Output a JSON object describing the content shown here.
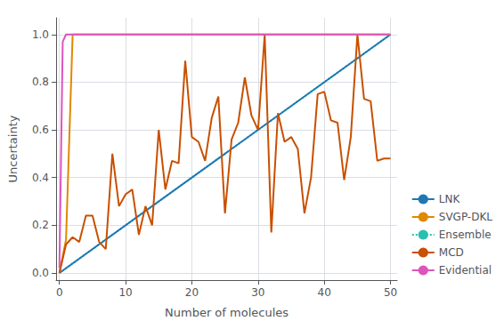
{
  "chart_data": {
    "type": "line",
    "xlabel": "Number of molecules",
    "ylabel": "Uncertainty",
    "xlim": [
      -0.5,
      51
    ],
    "ylim": [
      -0.03,
      1.07
    ],
    "xticks": [
      0,
      10,
      20,
      30,
      40,
      50
    ],
    "yticks": [
      {
        "value": 0.0,
        "label": "0.0"
      },
      0.2,
      0.4,
      0.6,
      0.8,
      {
        "value": 1.0,
        "label": "1.0"
      }
    ],
    "grid": true,
    "legend": "lower right",
    "series": [
      {
        "name": "LNK",
        "color": "#1f77b4",
        "line_style": "solid",
        "x": [
          0,
          50
        ],
        "values": [
          0.0,
          1.0
        ]
      },
      {
        "name": "SVGP-DKL",
        "color": "#e08800",
        "line_style": "solid",
        "x": [
          0,
          1,
          2,
          50
        ],
        "values": [
          0.0,
          0.14,
          1.0,
          1.0
        ]
      },
      {
        "name": "Ensemble",
        "color": "#2abfb0",
        "line_style": "dotted",
        "x": [
          0,
          50
        ],
        "values": [
          0.0,
          1.0
        ]
      },
      {
        "name": "MCD",
        "color": "#c85000",
        "line_style": "solid",
        "x": [
          0,
          1,
          2,
          3,
          4,
          5,
          6,
          7,
          8,
          9,
          10,
          11,
          12,
          13,
          14,
          15,
          16,
          17,
          18,
          19,
          20,
          21,
          22,
          23,
          24,
          25,
          26,
          27,
          28,
          29,
          30,
          31,
          32,
          33,
          34,
          35,
          36,
          37,
          38,
          39,
          40,
          41,
          42,
          43,
          44,
          45,
          46,
          47,
          48,
          49,
          50
        ],
        "values": [
          0.0,
          0.12,
          0.15,
          0.13,
          0.24,
          0.24,
          0.13,
          0.1,
          0.5,
          0.28,
          0.33,
          0.35,
          0.16,
          0.28,
          0.2,
          0.6,
          0.35,
          0.47,
          0.46,
          0.89,
          0.57,
          0.55,
          0.47,
          0.65,
          0.74,
          0.25,
          0.56,
          0.63,
          0.82,
          0.66,
          0.6,
          1.0,
          0.17,
          0.67,
          0.55,
          0.57,
          0.52,
          0.25,
          0.4,
          0.75,
          0.76,
          0.64,
          0.63,
          0.39,
          0.57,
          1.0,
          0.73,
          0.72,
          0.47,
          0.48,
          0.48
        ]
      },
      {
        "name": "Evidential",
        "color": "#dd55bb",
        "line_style": "solid",
        "x": [
          0,
          0.5,
          1,
          50
        ],
        "values": [
          0.02,
          0.97,
          1.0,
          1.0
        ]
      }
    ]
  }
}
